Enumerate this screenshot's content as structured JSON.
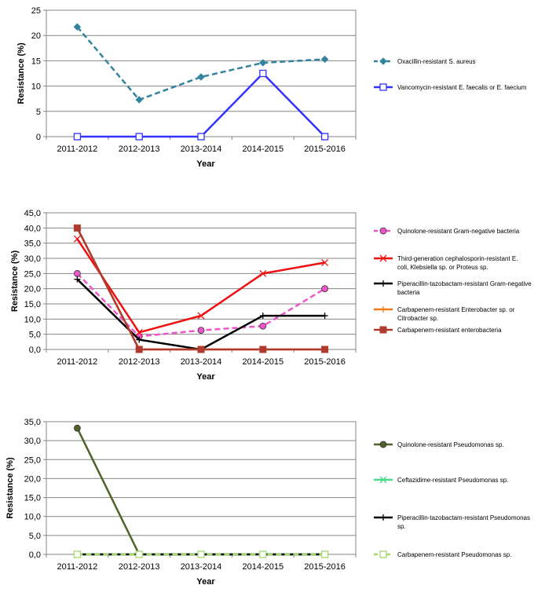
{
  "chart_data": [
    {
      "type": "line",
      "categories": [
        "2011-2012",
        "2012-2013",
        "2013-2014",
        "2014-2015",
        "2015-2016"
      ],
      "xlabel": "Year",
      "ylabel": "Resistance (%)",
      "ylim": [
        0,
        25
      ],
      "ystep": 5,
      "decimals": 0,
      "grid": true,
      "legend_position": "right",
      "series": [
        {
          "name": "Oxacillin-resistant S. aureus",
          "values": [
            21.7,
            7.3,
            11.8,
            14.6,
            15.3
          ],
          "color": "#31849b",
          "dash": "dashed",
          "marker": "diamond"
        },
        {
          "name": "Vancomycin-resistant E. faecalis or E. faecium",
          "values": [
            0,
            0,
            0,
            12.5,
            0
          ],
          "color": "#3333ff",
          "dash": "solid",
          "marker": "square-open"
        }
      ]
    },
    {
      "type": "line",
      "categories": [
        "2011-2012",
        "2012-2013",
        "2013-2014",
        "2014-2015",
        "2015-2016"
      ],
      "xlabel": "Year",
      "ylabel": "Resistance (%)",
      "ylim": [
        0,
        45
      ],
      "ystep": 5,
      "decimals": 1,
      "grid": true,
      "legend_position": "right",
      "series": [
        {
          "name": "Quinolone-resistant Gram-negative bacteria",
          "values": [
            25.0,
            4.3,
            6.3,
            7.7,
            20.0
          ],
          "color": "#ee55cc",
          "dash": "dashed",
          "marker": "circle"
        },
        {
          "name": "Third-generation cephalosporin-resistant E. coli, Klebsiella sp. or Proteus sp.",
          "values": [
            36.4,
            5.6,
            11.1,
            25.0,
            28.6
          ],
          "color": "#ee1111",
          "dash": "solid",
          "marker": "x"
        },
        {
          "name": "Piperacillin-tazobactam-resistant Gram-negative bacteria",
          "values": [
            23.1,
            3.2,
            0,
            11.1,
            11.1
          ],
          "color": "#000000",
          "dash": "solid",
          "marker": "plus"
        },
        {
          "name": "Carbapenem-resistant Enterobacter sp. or Citrobacter sp.",
          "values": [
            40.0,
            0,
            0,
            0,
            0
          ],
          "color": "#f07b18",
          "dash": "solid",
          "marker": "plus"
        },
        {
          "name": "Carbapenem-resistant enterobacteria",
          "values": [
            40.0,
            0,
            0,
            0,
            0
          ],
          "color": "#b03a2e",
          "dash": "solid",
          "marker": "square"
        }
      ]
    },
    {
      "type": "line",
      "categories": [
        "2011-2012",
        "2012-2013",
        "2013-2014",
        "2014-2015",
        "2015-2016"
      ],
      "xlabel": "Year",
      "ylabel": "Resistance (%)",
      "ylim": [
        0,
        35
      ],
      "ystep": 5,
      "decimals": 1,
      "grid": true,
      "legend_position": "right",
      "series": [
        {
          "name": "Quinolone-resistant Pseudomonas sp.",
          "values": [
            33.3,
            0,
            0,
            0,
            0
          ],
          "color": "#4f6228",
          "dash": "solid",
          "marker": "circle"
        },
        {
          "name": "Ceftazidime-resistant Pseudomonas sp.",
          "values": [
            0,
            0,
            0,
            0,
            0
          ],
          "color": "#4bd98a",
          "dash": "solid",
          "marker": "x"
        },
        {
          "name": "Piperacillin-tazobactam-resistant Pseudomonas sp.",
          "values": [
            0,
            0,
            0,
            0,
            0
          ],
          "color": "#000000",
          "dash": "solid",
          "marker": "plus"
        },
        {
          "name": "Carbapenem-resistant Pseudomonas sp.",
          "values": [
            0,
            0,
            0,
            0,
            0
          ],
          "color": "#a6d96a",
          "dash": "dashed",
          "marker": "square-open"
        }
      ]
    }
  ]
}
